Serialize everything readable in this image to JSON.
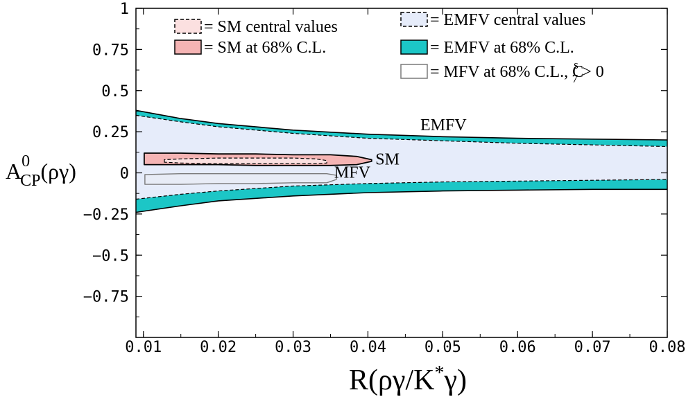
{
  "chart_data": {
    "type": "area",
    "title": "",
    "xlabel": {
      "main": "R(ργ/K",
      "sup": "*",
      "tail": "γ)"
    },
    "ylabel": {
      "main": "A",
      "sup": "0",
      "sub": "CP",
      "tail": "(ργ)"
    },
    "xlim": [
      0.009,
      0.08
    ],
    "ylim": [
      -1,
      1
    ],
    "x_ticks": [
      0.01,
      0.02,
      0.03,
      0.04,
      0.05,
      0.06,
      0.07,
      0.08
    ],
    "x_tick_labels": [
      "0.01",
      "0.02",
      "0.03",
      "0.04",
      "0.05",
      "0.06",
      "0.07",
      "0.08"
    ],
    "y_ticks": [
      1,
      0.75,
      0.5,
      0.25,
      0,
      -0.25,
      -0.5,
      -0.75
    ],
    "y_tick_labels": [
      "1",
      "0.75",
      "0.5",
      "0.25",
      "0",
      "−0.25",
      "−0.5",
      "−0.75"
    ],
    "grid": false,
    "legend_position": "top",
    "colors": {
      "emfv_central": "#e6ecfa",
      "emfv_cl": "#1cc6c6",
      "sm_cl": "#f5b4b4",
      "sm_central": "#fbe0e0",
      "mfv": "#e8ecf6",
      "mfv_edge": "#7a7a7a"
    },
    "legend": [
      {
        "id": "sm_central",
        "text": "= SM central values"
      },
      {
        "id": "emfv_central",
        "text": "= EMFV central values"
      },
      {
        "id": "sm_cl",
        "text": "= SM at 68% C.L."
      },
      {
        "id": "emfv_cl",
        "text": "= EMFV at 68% C.L."
      },
      {
        "id": "mfv",
        "text": "= MFV at 68% C.L., C",
        "sup": "s",
        "sub": "7",
        "tail": " > 0"
      }
    ],
    "annotations": [
      {
        "id": "emfv",
        "text": "EMFV",
        "x": 0.047,
        "y": 0.26
      },
      {
        "id": "sm",
        "text": "SM",
        "x": 0.041,
        "y": 0.05
      },
      {
        "id": "mfv",
        "text": "MFV",
        "x": 0.0355,
        "y": -0.03
      }
    ],
    "series": [
      {
        "name": "EMFV central values",
        "x": [
          0.009,
          0.015,
          0.02,
          0.03,
          0.04,
          0.05,
          0.06,
          0.07,
          0.08
        ],
        "upper": [
          0.35,
          0.31,
          0.28,
          0.24,
          0.21,
          0.195,
          0.18,
          0.17,
          0.16
        ],
        "lower": [
          -0.16,
          -0.13,
          -0.11,
          -0.08,
          -0.065,
          -0.055,
          -0.05,
          -0.045,
          -0.04
        ]
      },
      {
        "name": "EMFV at 68% C.L.",
        "x": [
          0.009,
          0.015,
          0.02,
          0.03,
          0.04,
          0.05,
          0.06,
          0.07,
          0.08
        ],
        "upper": [
          0.38,
          0.33,
          0.3,
          0.26,
          0.235,
          0.22,
          0.21,
          0.205,
          0.2
        ],
        "lower": [
          -0.24,
          -0.2,
          -0.17,
          -0.14,
          -0.12,
          -0.11,
          -0.105,
          -0.1,
          -0.1
        ]
      },
      {
        "name": "SM at 68% C.L.",
        "x": [
          0.0101,
          0.015,
          0.02,
          0.025,
          0.03,
          0.035,
          0.0385,
          0.0405
        ],
        "upper": [
          0.12,
          0.12,
          0.115,
          0.115,
          0.11,
          0.11,
          0.1,
          0.08
        ],
        "lower": [
          0.05,
          0.05,
          0.05,
          0.045,
          0.045,
          0.045,
          0.05,
          0.07
        ]
      },
      {
        "name": "SM central values",
        "x": [
          0.0128,
          0.015,
          0.02,
          0.025,
          0.03,
          0.033,
          0.0345
        ],
        "upper": [
          0.08,
          0.085,
          0.09,
          0.09,
          0.09,
          0.085,
          0.075
        ],
        "lower": [
          0.065,
          0.06,
          0.055,
          0.055,
          0.055,
          0.055,
          0.06
        ]
      },
      {
        "name": "MFV at 68% C.L., C7s > 0",
        "x": [
          0.0102,
          0.015,
          0.02,
          0.025,
          0.03,
          0.0345,
          0.0358
        ],
        "upper": [
          -0.01,
          -0.005,
          -0.005,
          -0.005,
          -0.005,
          -0.005,
          -0.015
        ],
        "lower": [
          -0.07,
          -0.07,
          -0.065,
          -0.065,
          -0.06,
          -0.06,
          -0.04
        ]
      }
    ]
  }
}
